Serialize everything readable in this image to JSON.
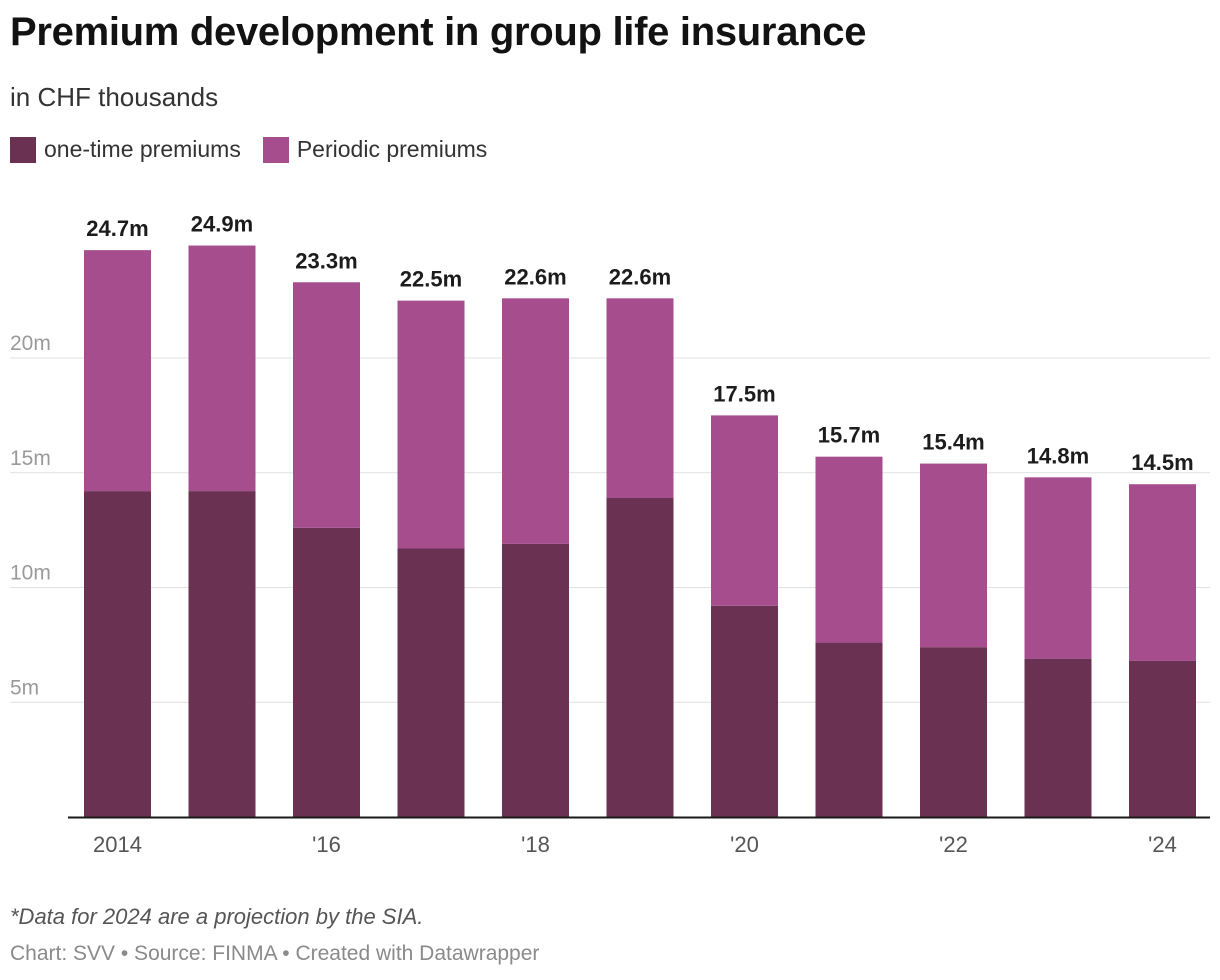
{
  "title": "Premium development in group life insurance",
  "subtitle": "in CHF thousands",
  "legend": [
    {
      "label": "one-time premiums",
      "color": "#6a3152"
    },
    {
      "label": "Periodic premiums",
      "color": "#a64d8e"
    }
  ],
  "note": "*Data for 2024 are a projection by the SIA.",
  "footer": "Chart: SVV • Source: FINMA • Created with Datawrapper",
  "chart_data": {
    "type": "bar",
    "stacked": true,
    "categories": [
      "2014",
      "2015",
      "2016",
      "2017",
      "2018",
      "2019",
      "2020",
      "2021",
      "2022",
      "2023",
      "2024"
    ],
    "x_tick_labels": [
      "2014",
      "",
      "'16",
      "",
      "'18",
      "",
      "'20",
      "",
      "'22",
      "",
      "'24"
    ],
    "series": [
      {
        "name": "one-time premiums",
        "color": "#6a3152",
        "values": [
          14.2,
          14.2,
          12.6,
          11.7,
          11.9,
          13.9,
          9.2,
          7.6,
          7.4,
          6.9,
          6.8
        ]
      },
      {
        "name": "Periodic premiums",
        "color": "#a64d8e",
        "values": [
          10.5,
          10.7,
          10.7,
          10.8,
          10.7,
          8.7,
          8.3,
          8.1,
          8.0,
          7.9,
          7.7
        ]
      }
    ],
    "total_labels": [
      "24.7m",
      "24.9m",
      "23.3m",
      "22.5m",
      "22.6m",
      "22.6m",
      "17.5m",
      "15.7m",
      "15.4m",
      "14.8m",
      "14.5m"
    ],
    "totals": [
      24.7,
      24.9,
      23.3,
      22.5,
      22.6,
      22.6,
      17.5,
      15.7,
      15.4,
      14.8,
      14.5
    ],
    "y_ticks": [
      5,
      10,
      15,
      20
    ],
    "y_tick_labels": [
      "5m",
      "10m",
      "15m",
      "20m"
    ],
    "ylim": [
      0,
      25
    ],
    "grid": true,
    "legend_position": "top-left"
  }
}
